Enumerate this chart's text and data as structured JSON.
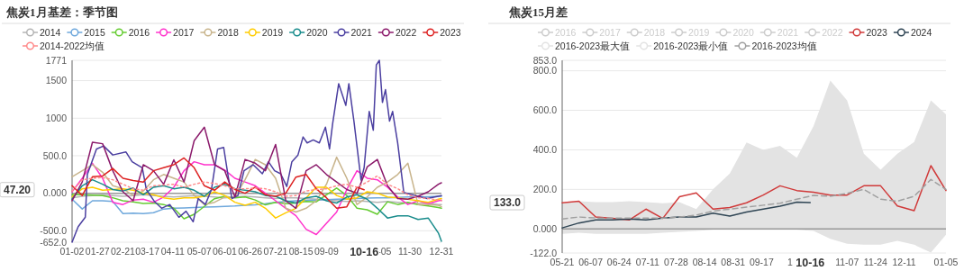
{
  "chart_data": [
    {
      "type": "line",
      "title": "焦炭1月基差：季节图",
      "legend": "top",
      "grid": "y",
      "x": [
        "--01-02",
        "--01-12",
        "--01-22",
        "--02-01",
        "--02-11",
        "--02-21",
        "--03-03",
        "--03-13",
        "--03-23",
        "--04-02",
        "--04-12",
        "--04-22",
        "--05-02",
        "--05-12",
        "--05-22",
        "--06-01",
        "--06-11",
        "--06-21",
        "--07-01",
        "--07-11",
        "--07-21",
        "--07-31",
        "--08-10",
        "--08-20",
        "--08-30",
        "--09-09",
        "--09-19",
        "--09-29",
        "--10-09",
        "--10-19",
        "--10-29",
        "--11-08",
        "--11-18",
        "--11-28",
        "--12-08",
        "--12-18",
        "--12-28",
        "--12-31"
      ],
      "xlim": [
        "--01-02",
        "--12-31"
      ],
      "xticks": [
        {
          "value": "--01-02",
          "label": "01-02"
        },
        {
          "value": "--01-27",
          "label": "01-27"
        },
        {
          "value": "--02-21",
          "label": "02-21"
        },
        {
          "value": "--03-17",
          "label": "03-17"
        },
        {
          "value": "--04-11",
          "label": "04-11"
        },
        {
          "value": "--05-07",
          "label": "05-07"
        },
        {
          "value": "--06-01",
          "label": "06-01"
        },
        {
          "value": "--06-26",
          "label": "06-26"
        },
        {
          "value": "--07-21",
          "label": "07-21"
        },
        {
          "value": "--08-15",
          "label": "08-15"
        },
        {
          "value": "--09-09",
          "label": "09-09"
        },
        {
          "value": "--11-05",
          "label": "-05"
        },
        {
          "value": "--11-30",
          "label": "11-30"
        },
        {
          "value": "--12-31",
          "label": "12-31"
        }
      ],
      "ylim": [
        -652,
        1771
      ],
      "yticks": [
        {
          "value": 1771,
          "label": "1771"
        },
        1500,
        1000,
        {
          "value": 500,
          "label": "500.0"
        },
        {
          "value": 0,
          "label": "0.000"
        },
        {
          "value": -500,
          "label": "-500.0"
        },
        {
          "value": -652,
          "label": "-652.0"
        }
      ],
      "annotations": [
        "47.20",
        "10-16"
      ],
      "series": [
        {
          "name": "2014",
          "color": "#b4b4b4",
          "values": [
            -60,
            -40,
            -30,
            -20,
            -30,
            -40,
            -30,
            -20,
            -30,
            -40,
            -50,
            -40,
            -30,
            -40,
            -50,
            -60,
            -50,
            -40,
            -50,
            -60,
            -70,
            -60,
            -60,
            -70,
            -80,
            -90,
            -100,
            -110,
            -100,
            -110,
            -120,
            -110,
            -120,
            -130,
            -140,
            -130,
            -150,
            -150
          ]
        },
        {
          "name": "2015",
          "color": "#6fa8dc",
          "values": [
            -80,
            -210,
            -100,
            -100,
            -110,
            -270,
            -265,
            -270,
            -260,
            -210,
            -200,
            -195,
            -190,
            -185,
            -180,
            -175,
            -170,
            -160,
            -155,
            -140,
            -120,
            -110,
            -100,
            -95,
            -90,
            -85,
            -80,
            -75,
            -70,
            -65,
            -60,
            -60,
            -55,
            -50,
            -50,
            -45,
            -40,
            -40
          ]
        },
        {
          "name": "2016",
          "color": "#66cc33",
          "values": [
            -20,
            -20,
            -25,
            -30,
            -60,
            -100,
            -114,
            -135,
            -130,
            -150,
            -200,
            -340,
            -280,
            -175,
            -72,
            -40,
            -60,
            -50,
            -90,
            -155,
            -120,
            -140,
            -130,
            -110,
            -114,
            -20,
            70,
            -30,
            -200,
            -220,
            -280,
            -114,
            -150,
            -120,
            -150,
            -170,
            -190,
            -200
          ]
        },
        {
          "name": "2017",
          "color": "#ff33cc",
          "values": [
            20,
            200,
            400,
            200,
            -120,
            -150,
            -90,
            -80,
            -120,
            -50,
            80,
            300,
            420,
            380,
            380,
            310,
            200,
            150,
            100,
            0,
            -100,
            -200,
            -300,
            -480,
            -550,
            -400,
            -250,
            50,
            300,
            200,
            180,
            80,
            -50,
            -150,
            -100,
            -140,
            -100,
            -90
          ]
        },
        {
          "name": "2018",
          "color": "#c8b48c",
          "values": [
            220,
            300,
            380,
            280,
            100,
            60,
            -30,
            30,
            180,
            250,
            200,
            150,
            -30,
            -150,
            -120,
            -50,
            -50,
            180,
            450,
            380,
            200,
            -200,
            -250,
            -200,
            -100,
            120,
            480,
            200,
            -150,
            -50,
            80,
            150,
            250,
            400,
            -150,
            -150,
            -160,
            -180
          ]
        },
        {
          "name": "2019",
          "color": "#ffcc00",
          "values": [
            -50,
            60,
            80,
            40,
            50,
            60,
            40,
            0,
            -20,
            -60,
            -80,
            -60,
            -60,
            -40,
            20,
            -30,
            -120,
            -160,
            -120,
            -200,
            -330,
            -260,
            -200,
            -60,
            80,
            80,
            -30,
            -80,
            -60,
            20,
            0,
            -50,
            -60,
            -80,
            -100,
            -120,
            -80,
            -70
          ]
        },
        {
          "name": "2020",
          "color": "#1a8c8c",
          "values": [
            -80,
            100,
            180,
            120,
            50,
            30,
            70,
            -20,
            80,
            100,
            60,
            80,
            40,
            -40,
            80,
            120,
            60,
            40,
            20,
            -30,
            -40,
            -100,
            -130,
            -60,
            -40,
            -100,
            -130,
            -50,
            -20,
            -80,
            -200,
            -330,
            -300,
            -300,
            -350,
            -330,
            -530,
            -640
          ]
        },
        {
          "name": "2021",
          "color": "#4b3fa0",
          "x": [
            "--01-02",
            "--01-08",
            "--01-15",
            "--01-17",
            "--01-26",
            "--02-02",
            "--02-11",
            "--02-24",
            "--03-02",
            "--03-12",
            "--03-16",
            "--03-24",
            "--03-31",
            "--04-08",
            "--04-17",
            "--04-24",
            "--05-01",
            "--05-06",
            "--05-13",
            "--05-19",
            "--05-25",
            "--05-31",
            "--06-04",
            "--06-08",
            "--06-14",
            "--06-20",
            "--06-29",
            "--07-08",
            "--07-14",
            "--07-20",
            "--07-26",
            "--08-01",
            "--08-06",
            "--08-12",
            "--08-17",
            "--08-21",
            "--08-27",
            "--09-02",
            "--09-08",
            "--09-12",
            "--09-15",
            "--09-21",
            "--09-28",
            "--10-01",
            "--10-06",
            "--10-13",
            "--10-16",
            "--10-21",
            "--10-25",
            "--10-28",
            "--10-31",
            "--11-03",
            "--11-06",
            "--11-10",
            "--11-13",
            "--11-18",
            "--11-24",
            "--12-05",
            "--12-17",
            "--12-31"
          ],
          "values": [
            -652,
            -445,
            -320,
            250,
            590,
            630,
            510,
            550,
            420,
            340,
            50,
            -110,
            -200,
            -150,
            -320,
            -240,
            -380,
            -70,
            -150,
            50,
            590,
            610,
            260,
            -70,
            -30,
            300,
            380,
            260,
            420,
            300,
            260,
            90,
            420,
            510,
            750,
            670,
            710,
            670,
            880,
            590,
            920,
            1460,
            1170,
            1460,
            960,
            175,
            340,
            1090,
            840,
            1710,
            1771,
            1210,
            1380,
            960,
            1090,
            670,
            10,
            -30,
            -70,
            -30
          ]
        },
        {
          "name": "2022",
          "color": "#8b1a6b",
          "values": [
            -100,
            150,
            680,
            660,
            300,
            20,
            -100,
            380,
            300,
            120,
            445,
            150,
            700,
            880,
            380,
            300,
            -50,
            450,
            400,
            300,
            650,
            -100,
            -200,
            300,
            380,
            250,
            150,
            50,
            0,
            350,
            450,
            100,
            -70,
            -80,
            -40,
            20,
            120,
            140
          ]
        },
        {
          "name": "2023",
          "color": "#dd2222",
          "x": [
            "--01-02",
            "--01-12",
            "--01-22",
            "--02-01",
            "--02-11",
            "--02-21",
            "--03-03",
            "--03-13",
            "--03-23",
            "--04-02",
            "--04-12",
            "--04-22",
            "--05-02",
            "--05-12",
            "--05-22",
            "--06-01",
            "--06-11",
            "--06-21",
            "--07-01",
            "--07-11",
            "--07-21",
            "--07-31",
            "--08-10",
            "--08-20",
            "--08-30",
            "--09-09",
            "--09-19",
            "--09-29",
            "--10-09",
            "--10-16"
          ],
          "values": [
            100,
            -30,
            220,
            230,
            330,
            200,
            170,
            150,
            300,
            340,
            380,
            470,
            340,
            100,
            40,
            150,
            50,
            0,
            80,
            -20,
            -40,
            0,
            215,
            250,
            60,
            -60,
            -200,
            -180,
            80,
            47.2
          ]
        },
        {
          "name": "2014-2022均值",
          "color": "#ff8a8a",
          "line_style": "dotted",
          "values": [
            30,
            180,
            200,
            210,
            180,
            120,
            60,
            40,
            100,
            110,
            120,
            80,
            120,
            150,
            130,
            100,
            60,
            60,
            70,
            60,
            20,
            -40,
            -30,
            30,
            50,
            60,
            100,
            120,
            80,
            150,
            230,
            120,
            60,
            -20,
            -60,
            -70,
            -90,
            -100
          ]
        }
      ]
    },
    {
      "type": "line",
      "title": "焦炭15月差",
      "legend": "top",
      "grid": "y",
      "x": [
        "2023-05-21",
        "2023-05-31",
        "2023-06-10",
        "2023-06-20",
        "2023-06-30",
        "2023-07-10",
        "2023-07-20",
        "2023-07-30",
        "2023-08-09",
        "2023-08-19",
        "2023-08-29",
        "2023-09-08",
        "2023-09-18",
        "2023-09-28",
        "2023-10-08",
        "2023-10-18",
        "2023-10-28",
        "2023-11-07",
        "2023-11-17",
        "2023-11-27",
        "2023-12-07",
        "2023-12-17",
        "2023-12-27",
        "2024-01-05"
      ],
      "xlim": [
        "2023-05-21",
        "2024-01-05"
      ],
      "xticks": [
        {
          "value": "2023-05-21",
          "label": "05-21"
        },
        {
          "value": "2023-06-07",
          "label": "06-07"
        },
        {
          "value": "2023-06-24",
          "label": "06-24"
        },
        {
          "value": "2023-07-11",
          "label": "07-11"
        },
        {
          "value": "2023-07-28",
          "label": "07-28"
        },
        {
          "value": "2023-08-14",
          "label": "08-14"
        },
        {
          "value": "2023-08-31",
          "label": "08-31"
        },
        {
          "value": "2023-09-17",
          "label": "09-17"
        },
        {
          "value": "2023-10-04",
          "label": "1"
        },
        {
          "value": "2023-11-07",
          "label": "11-07"
        },
        {
          "value": "2023-11-24",
          "label": "11-24"
        },
        {
          "value": "2023-12-11",
          "label": "12-11"
        },
        {
          "value": "2024-01-05",
          "label": "01-05"
        }
      ],
      "ylim": [
        -122,
        853
      ],
      "yticks": [
        {
          "value": 853,
          "label": "853.0"
        },
        {
          "value": 800,
          "label": "800.0"
        },
        {
          "value": 600,
          "label": "600.0"
        },
        {
          "value": 400,
          "label": "400.0"
        },
        {
          "value": 200,
          "label": "200.0"
        },
        {
          "value": 0,
          "label": "0.000"
        },
        {
          "value": -122,
          "label": "-122.0"
        }
      ],
      "annotations": [
        "133.0",
        "10-16"
      ],
      "series": [
        {
          "name": "2016",
          "color": "#cccccc",
          "values": [
            null,
            null,
            null,
            null,
            null,
            null,
            null,
            null,
            null,
            null,
            null,
            null,
            null,
            null,
            null,
            null,
            null,
            null,
            null,
            null,
            null,
            null,
            null,
            null
          ]
        },
        {
          "name": "2017",
          "color": "#cccccc",
          "values": [
            null,
            null,
            null,
            null,
            null,
            null,
            null,
            null,
            null,
            null,
            null,
            null,
            null,
            null,
            null,
            null,
            null,
            null,
            null,
            null,
            null,
            null,
            null,
            null
          ]
        },
        {
          "name": "2018",
          "color": "#cccccc",
          "values": [
            null,
            null,
            null,
            null,
            null,
            null,
            null,
            null,
            null,
            null,
            null,
            null,
            null,
            null,
            null,
            null,
            null,
            null,
            null,
            null,
            null,
            null,
            null,
            null
          ]
        },
        {
          "name": "2019",
          "color": "#cccccc",
          "values": [
            null,
            null,
            null,
            null,
            null,
            null,
            null,
            null,
            null,
            null,
            null,
            null,
            null,
            null,
            null,
            null,
            null,
            null,
            null,
            null,
            null,
            null,
            null,
            null
          ]
        },
        {
          "name": "2020",
          "color": "#cccccc",
          "values": [
            null,
            null,
            null,
            null,
            null,
            null,
            null,
            null,
            null,
            null,
            null,
            null,
            null,
            null,
            null,
            null,
            null,
            null,
            null,
            null,
            null,
            null,
            null,
            null
          ]
        },
        {
          "name": "2021",
          "color": "#cccccc",
          "values": [
            null,
            null,
            null,
            null,
            null,
            null,
            null,
            null,
            null,
            null,
            null,
            null,
            null,
            null,
            null,
            null,
            null,
            null,
            null,
            null,
            null,
            null,
            null,
            null
          ]
        },
        {
          "name": "2022",
          "color": "#cccccc",
          "values": [
            null,
            null,
            null,
            null,
            null,
            null,
            null,
            null,
            null,
            null,
            null,
            null,
            null,
            null,
            null,
            null,
            null,
            null,
            null,
            null,
            null,
            null,
            null,
            null
          ]
        },
        {
          "name": "2023",
          "color": "#d03a3a",
          "values": [
            132,
            140,
            60,
            53,
            45,
            100,
            53,
            163,
            182,
            100,
            108,
            132,
            171,
            218,
            194,
            186,
            171,
            171,
            218,
            218,
            116,
            92,
            320,
            194
          ]
        },
        {
          "name": "2024",
          "color": "#2f4554",
          "x": [
            "2023-05-21",
            "2023-05-31",
            "2023-06-10",
            "2023-06-20",
            "2023-06-30",
            "2023-07-10",
            "2023-07-20",
            "2023-07-30",
            "2023-08-09",
            "2023-08-19",
            "2023-08-29",
            "2023-09-08",
            "2023-09-18",
            "2023-09-28",
            "2023-10-08",
            "2023-10-16"
          ],
          "values": [
            5,
            30,
            45,
            45,
            50,
            45,
            55,
            60,
            60,
            80,
            65,
            85,
            100,
            115,
            135,
            133
          ]
        },
        {
          "name": "2016-2023最大值",
          "type": "area",
          "color": "#e3e3e3",
          "values": [
            130,
            140,
            135,
            135,
            140,
            135,
            130,
            135,
            100,
            200,
            280,
            437,
            400,
            420,
            360,
            520,
            750,
            650,
            380,
            300,
            380,
            440,
            650,
            580
          ]
        },
        {
          "name": "2016-2023最小值",
          "type": "area",
          "color": "#e3e3e3",
          "values": [
            -25,
            -20,
            -25,
            -25,
            -25,
            -25,
            -20,
            -15,
            -10,
            -5,
            -5,
            -5,
            -5,
            -5,
            -5,
            -10,
            -50,
            -75,
            -80,
            -80,
            -60,
            -80,
            -120,
            -30
          ]
        },
        {
          "name": "2016-2023均值",
          "color": "#a0a0a0",
          "line_style": "dashed",
          "values": [
            50,
            60,
            55,
            55,
            55,
            55,
            55,
            60,
            70,
            90,
            100,
            110,
            120,
            130,
            150,
            170,
            165,
            180,
            200,
            150,
            140,
            165,
            250,
            200
          ]
        }
      ]
    }
  ]
}
